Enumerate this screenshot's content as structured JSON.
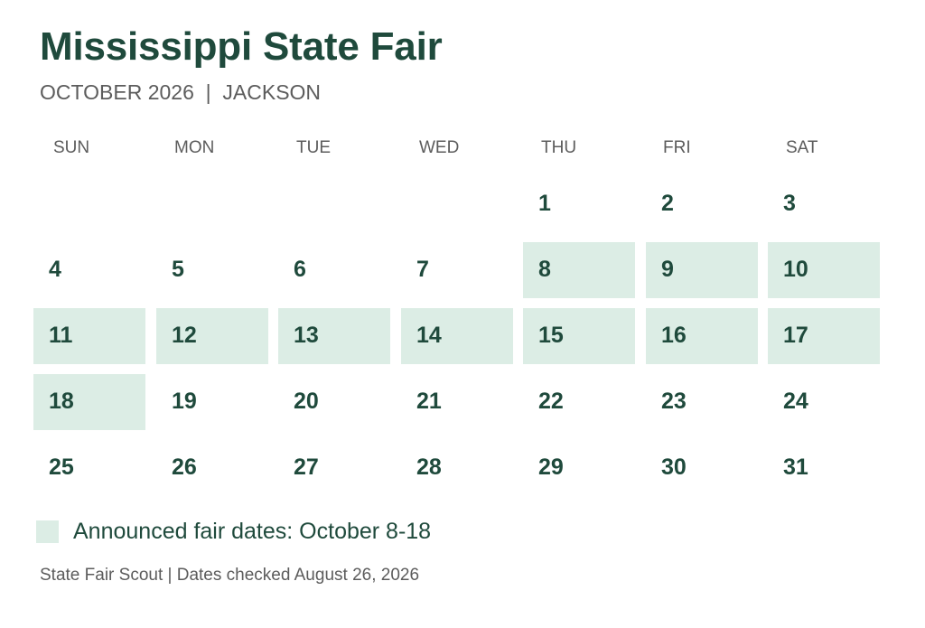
{
  "header": {
    "title": "Mississippi State Fair",
    "subtitle": "OCTOBER 2026  |  JACKSON"
  },
  "calendar": {
    "weekdays": [
      "SUN",
      "MON",
      "TUE",
      "WED",
      "THU",
      "FRI",
      "SAT"
    ],
    "first_weekday_index": 4,
    "days_in_month": 31,
    "highlight_start": 8,
    "highlight_end": 18
  },
  "legend": {
    "label": "Announced fair dates: October 8-18"
  },
  "footer": {
    "source": "State Fair Scout | Dates checked August 26, 2026"
  },
  "colors": {
    "title": "#1f4a3c",
    "muted_text": "#5c5c5c",
    "highlight": "#dcede5"
  }
}
